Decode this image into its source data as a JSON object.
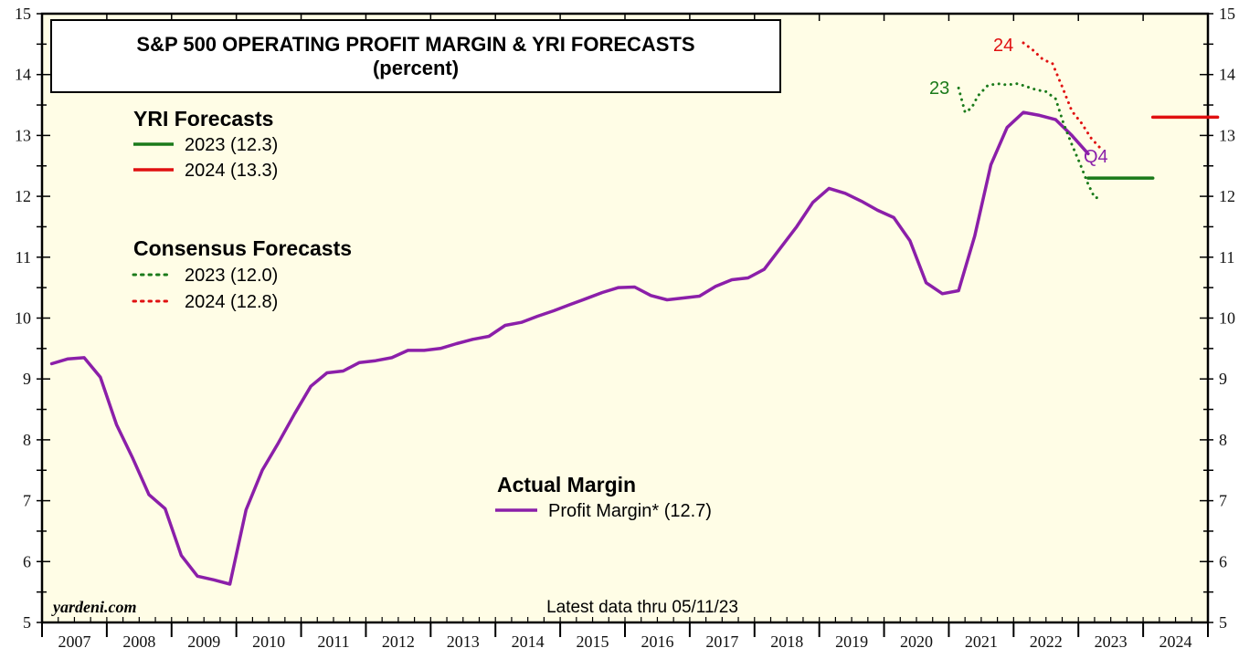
{
  "colors": {
    "background": "#fffde6",
    "actual": "#8b1fa9",
    "forecast_2023": "#1a7a1a",
    "forecast_2024": "#e01010"
  },
  "chart_data": {
    "type": "line",
    "title": "S&P 500 OPERATING PROFIT MARGIN & YRI FORECASTS",
    "subtitle": "(percent)",
    "ylim": [
      5,
      15
    ],
    "yticks": [
      "5",
      "6",
      "7",
      "8",
      "9",
      "10",
      "11",
      "12",
      "13",
      "14",
      "15"
    ],
    "x_years": [
      "2007",
      "2008",
      "2009",
      "2010",
      "2011",
      "2012",
      "2013",
      "2014",
      "2015",
      "2016",
      "2017",
      "2018",
      "2019",
      "2020",
      "2021",
      "2022",
      "2023",
      "2024"
    ],
    "legend": {
      "yri_heading": "YRI Forecasts",
      "yri_2023": "2023 (12.3)",
      "yri_2024": "2024 (13.3)",
      "consensus_heading": "Consensus Forecasts",
      "consensus_2023": "2023 (12.0)",
      "consensus_2024": "2024 (12.8)",
      "actual_heading": "Actual Margin",
      "actual_item": "Profit Margin* (12.7)"
    },
    "series": [
      {
        "name": "Profit Margin* (12.7)",
        "style": "solid",
        "points": [
          [
            2007.0,
            9.25
          ],
          [
            2007.25,
            9.33
          ],
          [
            2007.5,
            9.35
          ],
          [
            2007.75,
            9.03
          ],
          [
            2008.0,
            8.25
          ],
          [
            2008.25,
            7.7
          ],
          [
            2008.5,
            7.1
          ],
          [
            2008.75,
            6.87
          ],
          [
            2009.0,
            6.1
          ],
          [
            2009.25,
            5.76
          ],
          [
            2009.5,
            5.7
          ],
          [
            2009.75,
            5.63
          ],
          [
            2010.0,
            6.85
          ],
          [
            2010.25,
            7.5
          ],
          [
            2010.5,
            7.95
          ],
          [
            2010.75,
            8.43
          ],
          [
            2011.0,
            8.88
          ],
          [
            2011.25,
            9.1
          ],
          [
            2011.5,
            9.13
          ],
          [
            2011.75,
            9.27
          ],
          [
            2012.0,
            9.3
          ],
          [
            2012.25,
            9.35
          ],
          [
            2012.5,
            9.47
          ],
          [
            2012.75,
            9.47
          ],
          [
            2013.0,
            9.5
          ],
          [
            2013.25,
            9.58
          ],
          [
            2013.5,
            9.65
          ],
          [
            2013.75,
            9.7
          ],
          [
            2014.0,
            9.88
          ],
          [
            2014.25,
            9.93
          ],
          [
            2014.5,
            10.03
          ],
          [
            2014.75,
            10.12
          ],
          [
            2015.0,
            10.22
          ],
          [
            2015.25,
            10.32
          ],
          [
            2015.5,
            10.42
          ],
          [
            2015.75,
            10.5
          ],
          [
            2016.0,
            10.51
          ],
          [
            2016.25,
            10.37
          ],
          [
            2016.5,
            10.3
          ],
          [
            2016.75,
            10.33
          ],
          [
            2017.0,
            10.36
          ],
          [
            2017.25,
            10.52
          ],
          [
            2017.5,
            10.63
          ],
          [
            2017.75,
            10.66
          ],
          [
            2018.0,
            10.8
          ],
          [
            2018.25,
            11.15
          ],
          [
            2018.5,
            11.5
          ],
          [
            2018.75,
            11.9
          ],
          [
            2019.0,
            12.13
          ],
          [
            2019.25,
            12.05
          ],
          [
            2019.5,
            11.92
          ],
          [
            2019.75,
            11.77
          ],
          [
            2020.0,
            11.65
          ],
          [
            2020.25,
            11.27
          ],
          [
            2020.5,
            10.58
          ],
          [
            2020.75,
            10.4
          ],
          [
            2021.0,
            10.45
          ],
          [
            2021.25,
            11.35
          ],
          [
            2021.5,
            12.52
          ],
          [
            2021.75,
            13.13
          ],
          [
            2022.0,
            13.38
          ],
          [
            2022.25,
            13.33
          ],
          [
            2022.5,
            13.26
          ],
          [
            2022.75,
            13.0
          ],
          [
            2023.0,
            12.7
          ]
        ]
      },
      {
        "name": "2023 (12.0)",
        "style": "dotted",
        "points": [
          [
            2021.0,
            13.78
          ],
          [
            2021.1,
            13.38
          ],
          [
            2021.2,
            13.45
          ],
          [
            2021.3,
            13.65
          ],
          [
            2021.45,
            13.82
          ],
          [
            2021.6,
            13.85
          ],
          [
            2021.75,
            13.83
          ],
          [
            2021.9,
            13.85
          ],
          [
            2022.0,
            13.82
          ],
          [
            2022.2,
            13.75
          ],
          [
            2022.35,
            13.72
          ],
          [
            2022.5,
            13.6
          ],
          [
            2022.62,
            13.2
          ],
          [
            2022.75,
            12.85
          ],
          [
            2022.87,
            12.55
          ],
          [
            2023.0,
            12.2
          ],
          [
            2023.1,
            11.98
          ],
          [
            2023.2,
            11.97
          ]
        ]
      },
      {
        "name": "2024 (12.8)",
        "style": "dotted",
        "points": [
          [
            2022.0,
            14.52
          ],
          [
            2022.15,
            14.4
          ],
          [
            2022.3,
            14.25
          ],
          [
            2022.45,
            14.18
          ],
          [
            2022.6,
            13.8
          ],
          [
            2022.75,
            13.4
          ],
          [
            2022.9,
            13.2
          ],
          [
            2023.05,
            12.95
          ],
          [
            2023.2,
            12.78
          ]
        ]
      },
      {
        "name": "2023 (12.3)",
        "style": "solid",
        "points": [
          [
            2023.0,
            12.3
          ],
          [
            2024.0,
            12.3
          ]
        ]
      },
      {
        "name": "2024 (13.3)",
        "style": "solid",
        "points": [
          [
            2024.0,
            13.3
          ],
          [
            2025.0,
            13.3
          ]
        ]
      }
    ],
    "annotations": {
      "label_23": "23",
      "label_24": "24",
      "label_q4": "Q4"
    },
    "footnote": "Latest data thru 05/11/23",
    "brand": "yardeni.com"
  }
}
